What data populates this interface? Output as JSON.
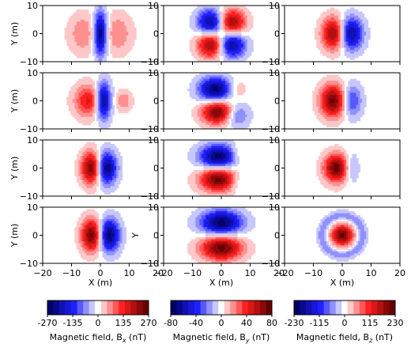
{
  "chart_data": {
    "type": "heatmap",
    "layout": {
      "rows": 4,
      "cols": 3
    },
    "xlabel": "X (m)",
    "ylabel": "Y (m)",
    "xlim": [
      -20,
      20
    ],
    "ylim": [
      -10,
      10
    ],
    "x_ticks": [
      "−20",
      "−10",
      "0",
      "10",
      "20"
    ],
    "y_ticks": [
      "10",
      "0",
      "−10"
    ],
    "panels": [
      {
        "row": 0,
        "col": 0,
        "component": "Bx",
        "blobs": [
          {
            "x": 0,
            "y": 0,
            "sx": 1.6,
            "sy": 5.5,
            "amp": -1.0
          },
          {
            "x": -6,
            "y": 0,
            "sx": 3.5,
            "sy": 5,
            "amp": 0.3
          },
          {
            "x": 6,
            "y": 0,
            "sx": 3.5,
            "sy": 5,
            "amp": 0.3
          }
        ]
      },
      {
        "row": 0,
        "col": 1,
        "component": "By",
        "blobs": [
          {
            "x": -3,
            "y": 4,
            "sx": 3.5,
            "sy": 3.2,
            "amp": -1.0
          },
          {
            "x": 3,
            "y": 4,
            "sx": 3.5,
            "sy": 3.2,
            "amp": 1.0
          },
          {
            "x": -3,
            "y": -4,
            "sx": 3.5,
            "sy": 3.2,
            "amp": 1.0
          },
          {
            "x": 3,
            "y": -4,
            "sx": 3.5,
            "sy": 3.2,
            "amp": -1.0
          }
        ]
      },
      {
        "row": 0,
        "col": 2,
        "component": "Bz",
        "blobs": [
          {
            "x": -2.5,
            "y": 0,
            "sx": 3,
            "sy": 4,
            "amp": 1.0
          },
          {
            "x": 2.5,
            "y": 0,
            "sx": 3,
            "sy": 4,
            "amp": -1.0
          }
        ]
      },
      {
        "row": 1,
        "col": 0,
        "component": "Bx",
        "blobs": [
          {
            "x": 1,
            "y": 0,
            "sx": 1.8,
            "sy": 4.5,
            "amp": -1.0
          },
          {
            "x": -4,
            "y": 0,
            "sx": 3.5,
            "sy": 4,
            "amp": 0.6
          },
          {
            "x": 8,
            "y": 0,
            "sx": 2,
            "sy": 2.5,
            "amp": 0.3
          }
        ]
      },
      {
        "row": 1,
        "col": 1,
        "component": "By",
        "blobs": [
          {
            "x": -2,
            "y": 4,
            "sx": 4,
            "sy": 3,
            "amp": -1.0
          },
          {
            "x": -1,
            "y": -4,
            "sx": 4,
            "sy": 3,
            "amp": 1.0
          },
          {
            "x": 5,
            "y": -5,
            "sx": 3,
            "sy": 3,
            "amp": -0.5
          },
          {
            "x": 5,
            "y": 4,
            "sx": 2.5,
            "sy": 2.5,
            "amp": 0.25
          }
        ]
      },
      {
        "row": 1,
        "col": 2,
        "component": "Bz",
        "blobs": [
          {
            "x": -3,
            "y": 0,
            "sx": 3.2,
            "sy": 4,
            "amp": 1.0
          },
          {
            "x": 3,
            "y": 0,
            "sx": 2.5,
            "sy": 4,
            "amp": -0.55
          }
        ]
      },
      {
        "row": 2,
        "col": 0,
        "component": "Bx",
        "blobs": [
          {
            "x": -3,
            "y": 0,
            "sx": 2.5,
            "sy": 4,
            "amp": 1.0
          },
          {
            "x": 2,
            "y": 0,
            "sx": 2.5,
            "sy": 4,
            "amp": -1.0
          }
        ]
      },
      {
        "row": 2,
        "col": 1,
        "component": "By",
        "blobs": [
          {
            "x": -1,
            "y": 4,
            "sx": 4.5,
            "sy": 3,
            "amp": -1.0
          },
          {
            "x": -1,
            "y": -4,
            "sx": 4.5,
            "sy": 3,
            "amp": 1.0
          },
          {
            "x": 6,
            "y": 5,
            "sx": 2.5,
            "sy": 2.5,
            "amp": 0.25
          },
          {
            "x": 6,
            "y": -5,
            "sx": 2.5,
            "sy": 2.5,
            "amp": -0.25
          }
        ]
      },
      {
        "row": 2,
        "col": 2,
        "component": "Bz",
        "blobs": [
          {
            "x": -2,
            "y": 0,
            "sx": 3,
            "sy": 3.5,
            "amp": 1.0
          },
          {
            "x": 3,
            "y": 0,
            "sx": 1.8,
            "sy": 3.5,
            "amp": -0.35
          }
        ]
      },
      {
        "row": 3,
        "col": 0,
        "component": "Bx",
        "blobs": [
          {
            "x": -3,
            "y": 0,
            "sx": 2.5,
            "sy": 4,
            "amp": 1.0
          },
          {
            "x": 3,
            "y": 0,
            "sx": 2.5,
            "sy": 4,
            "amp": -1.0
          }
        ]
      },
      {
        "row": 3,
        "col": 1,
        "component": "By",
        "blobs": [
          {
            "x": 0,
            "y": 4.5,
            "sx": 5,
            "sy": 3,
            "amp": -1.0
          },
          {
            "x": 0,
            "y": -4.5,
            "sx": 5,
            "sy": 3,
            "amp": 1.0
          }
        ]
      },
      {
        "row": 3,
        "col": 2,
        "component": "Bz",
        "blobs": [
          {
            "x": 0,
            "y": 0,
            "sx": 2.6,
            "sy": 2.6,
            "amp": 1.0
          }
        ],
        "ring": {
          "r": 7,
          "width": 1.2,
          "amp": -0.3
        }
      }
    ],
    "colorbars": [
      {
        "component": "Bx",
        "vmin": -270,
        "vmax": 270,
        "ticks": [
          "-270",
          "-135",
          "0",
          "135",
          "270"
        ],
        "label": "Magnetic field, B",
        "label_sub": "x",
        "unit": " (nT)"
      },
      {
        "component": "By",
        "vmin": -80,
        "vmax": 80,
        "ticks": [
          "-80",
          "-40",
          "0",
          "40",
          "80"
        ],
        "label": "Magnetic field, B",
        "label_sub": "y",
        "unit": " (nT)"
      },
      {
        "component": "Bz",
        "vmin": -230,
        "vmax": 230,
        "ticks": [
          "-230",
          "-115",
          "0",
          "115",
          "230"
        ],
        "label": "Magnetic field, B",
        "label_sub": "z",
        "unit": " (nT)"
      }
    ],
    "colormap": {
      "negative": "#000066",
      "mid_negative": "#2020ff",
      "zero": "#ffffff",
      "mid_positive": "#ff2020",
      "positive": "#660000"
    },
    "grid": false
  }
}
